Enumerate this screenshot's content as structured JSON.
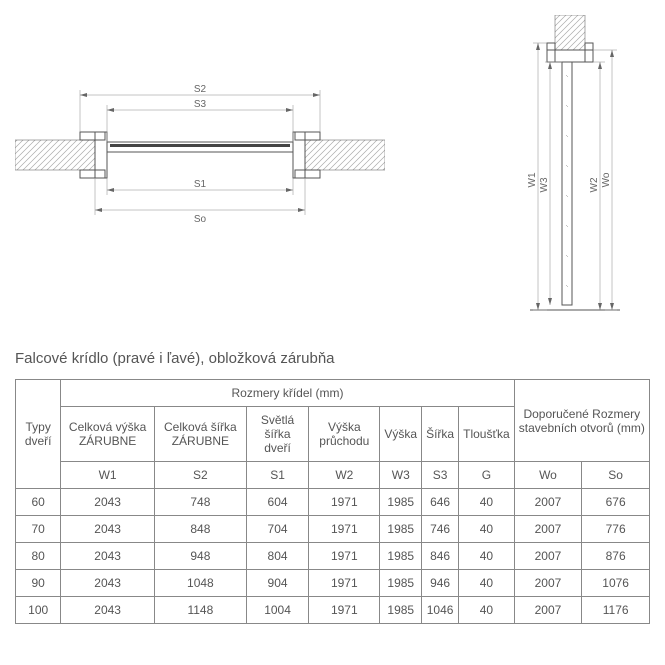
{
  "title": "Falcové krídlo (pravé i ľavé), obložková zárubňa",
  "dim_labels": {
    "top": {
      "S2": "S2",
      "S3": "S3",
      "S1": "S1",
      "So": "So"
    },
    "side": {
      "W1": "W1",
      "W3": "W3",
      "W2": "W2",
      "Wo": "Wo"
    }
  },
  "table": {
    "header_group_left": "Rozmery křídel (mm)",
    "header_group_right": "Doporučené Rozmery stavebních otvorů (mm)",
    "col_type": "Typy dveří",
    "columns": [
      {
        "label": "Celková výška ZÁRUBNE",
        "code": "W1"
      },
      {
        "label": "Celková šířka ZÁRUBNE",
        "code": "S2"
      },
      {
        "label": "Světlá šířka dveří",
        "code": "S1"
      },
      {
        "label": "Výška průchodu",
        "code": "W2"
      },
      {
        "label": "Výška",
        "code": "W3"
      },
      {
        "label": "Šířka",
        "code": "S3"
      },
      {
        "label": "Tloušťka",
        "code": "G"
      }
    ],
    "right_codes": [
      "Wo",
      "So"
    ],
    "rows": [
      [
        "60",
        "2043",
        "748",
        "604",
        "1971",
        "1985",
        "646",
        "40",
        "2007",
        "676"
      ],
      [
        "70",
        "2043",
        "848",
        "704",
        "1971",
        "1985",
        "746",
        "40",
        "2007",
        "776"
      ],
      [
        "80",
        "2043",
        "948",
        "804",
        "1971",
        "1985",
        "846",
        "40",
        "2007",
        "876"
      ],
      [
        "90",
        "2043",
        "1048",
        "904",
        "1971",
        "1985",
        "946",
        "40",
        "2007",
        "1076"
      ],
      [
        "100",
        "2043",
        "1148",
        "1004",
        "1971",
        "1985",
        "1046",
        "40",
        "2007",
        "1176"
      ]
    ]
  },
  "colors": {
    "line": "#555555",
    "thin": "#888888",
    "text": "#555555",
    "hatch": "#cccccc"
  }
}
